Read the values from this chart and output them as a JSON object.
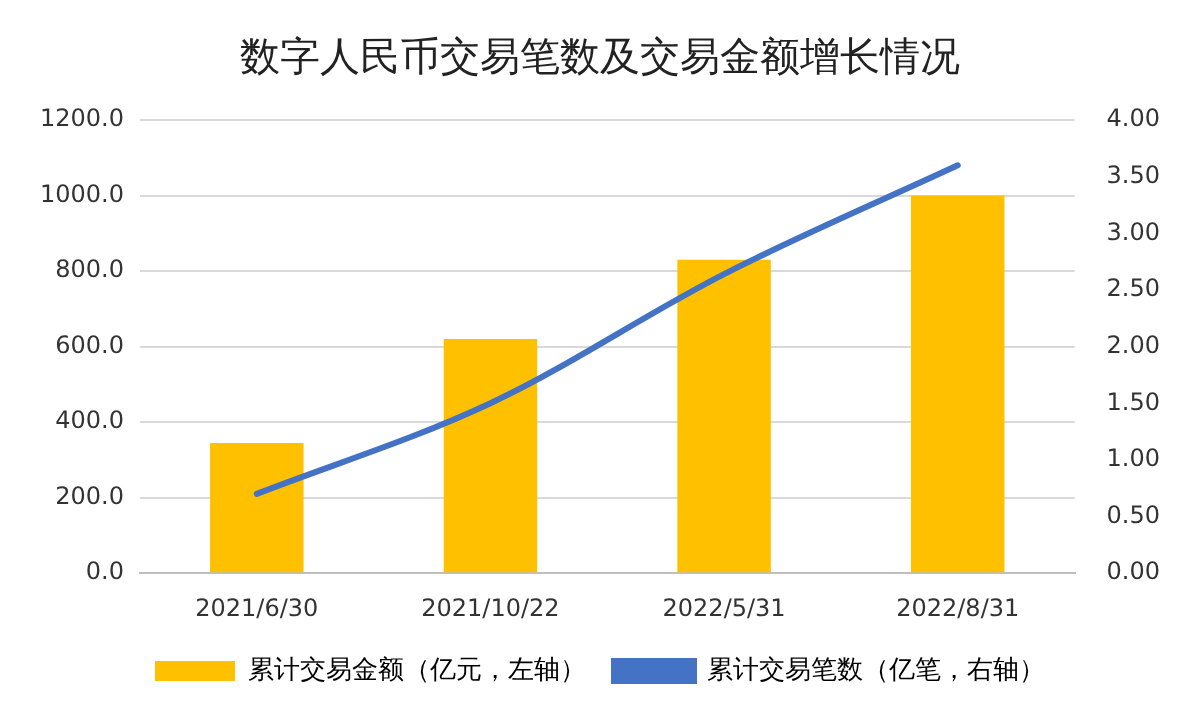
{
  "chart_data": {
    "type": "bar",
    "title": "数字人民币交易笔数及交易金额增长情况",
    "categories": [
      "2021/6/30",
      "2021/10/22",
      "2022/5/31",
      "2022/8/31"
    ],
    "series": [
      {
        "name": "累计交易金额（亿元，左轴）",
        "color": "#ffc000",
        "values": [
          345,
          620,
          830,
          1000
        ]
      },
      {
        "name": "累计交易笔数（亿笔，右轴）",
        "type": "line",
        "axis": "y2",
        "color": "#4472c4",
        "values": [
          0.7,
          1.5,
          2.64,
          3.6
        ]
      }
    ],
    "ylim": [
      0,
      1200
    ],
    "yticks": [
      {
        "value": 0,
        "label": "0.0"
      },
      {
        "value": 200,
        "label": "200.0"
      },
      {
        "value": 400,
        "label": "400.0"
      },
      {
        "value": 600,
        "label": "600.0"
      },
      {
        "value": 800,
        "label": "800.0"
      },
      {
        "value": 1000,
        "label": "1000.0"
      },
      {
        "value": 1200,
        "label": "1200.0"
      }
    ],
    "y2lim": [
      0,
      4
    ],
    "y2ticks": [
      {
        "value": 0,
        "label": "0.00"
      },
      {
        "value": 0.5,
        "label": "0.50"
      },
      {
        "value": 1,
        "label": "1.00"
      },
      {
        "value": 1.5,
        "label": "1.50"
      },
      {
        "value": 2,
        "label": "2.00"
      },
      {
        "value": 2.5,
        "label": "2.50"
      },
      {
        "value": 3,
        "label": "3.00"
      },
      {
        "value": 3.5,
        "label": "3.50"
      },
      {
        "value": 4,
        "label": "4.00"
      }
    ],
    "grid": "y",
    "legend": "bottom",
    "marker": "none",
    "line_style": "solid"
  }
}
